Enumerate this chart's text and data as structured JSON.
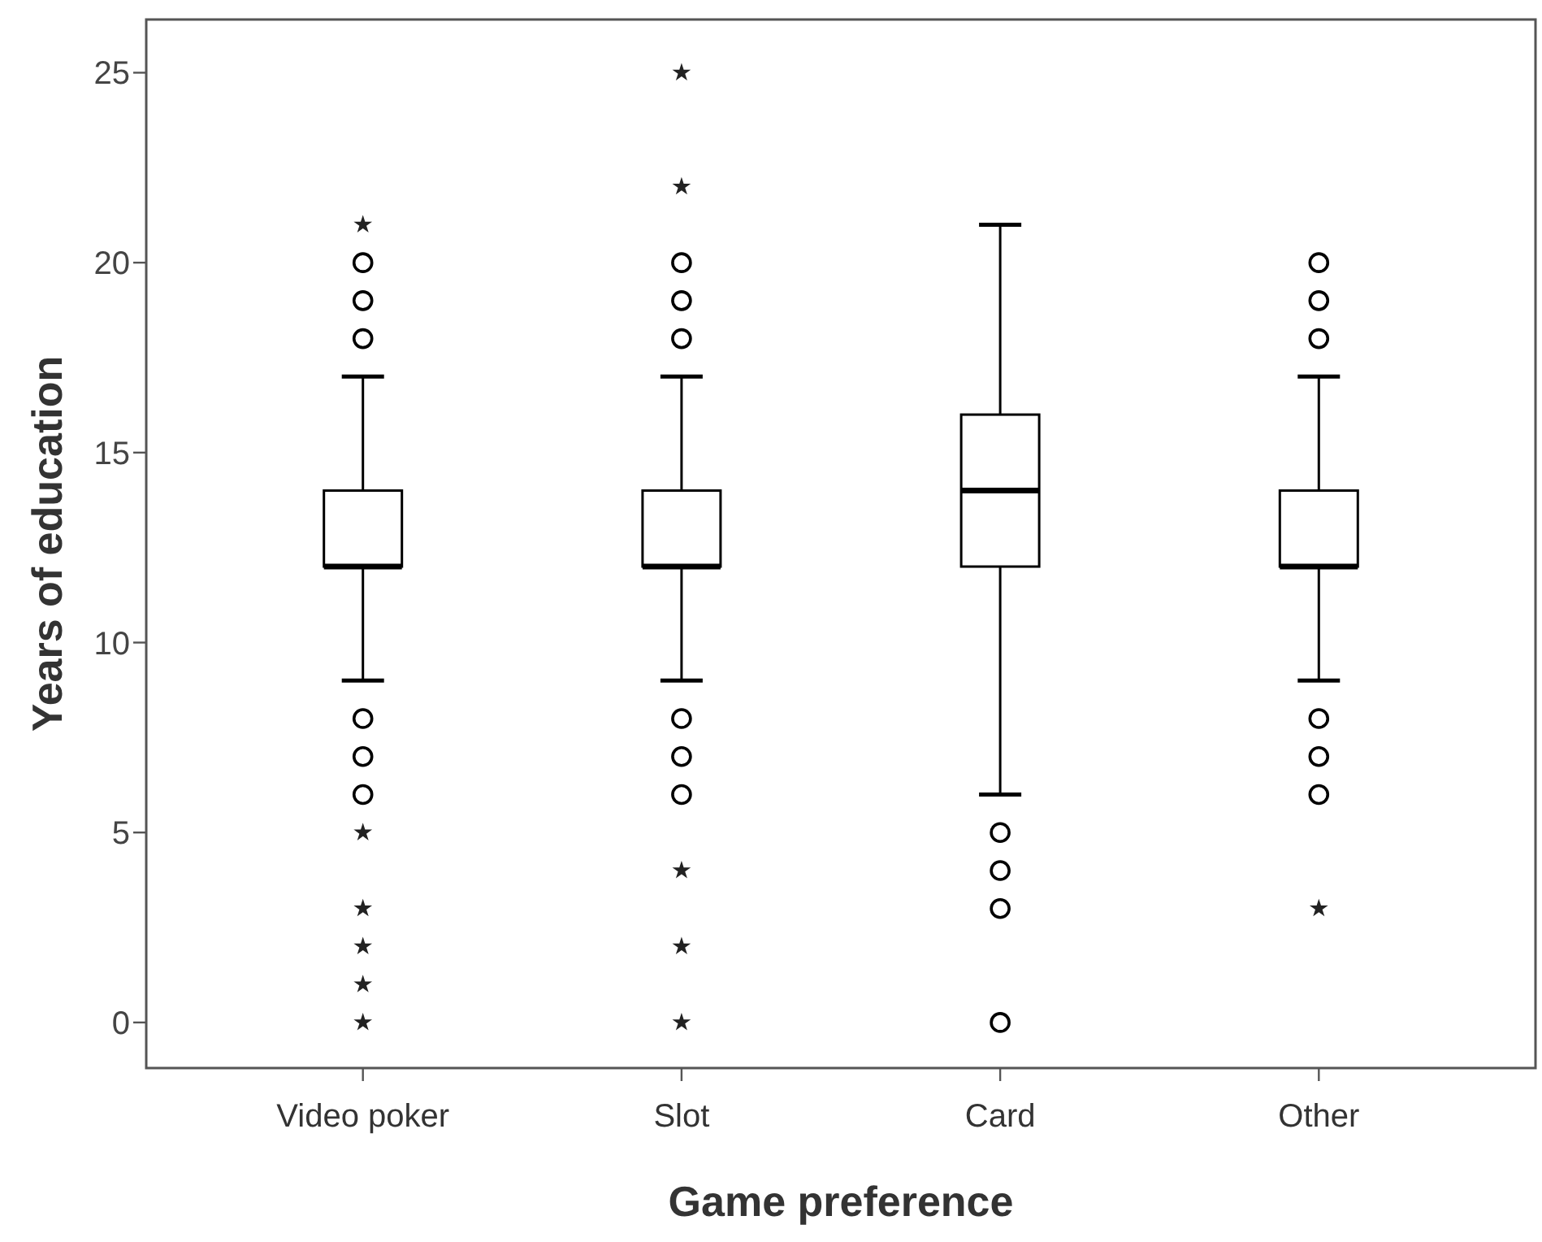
{
  "chart_data": {
    "type": "box",
    "xlabel": "Game preference",
    "ylabel": "Years of education",
    "categories": [
      "Video poker",
      "Slot",
      "Card",
      "Other"
    ],
    "ylim": [
      -1.2,
      26.4
    ],
    "yticks": [
      0,
      5,
      10,
      15,
      20,
      25
    ],
    "series": [
      {
        "color": "#000000",
        "boxes": [
          {
            "low": 9,
            "q1": 12,
            "median": 12,
            "q3": 14,
            "high": 17,
            "outliers": [
              18,
              19,
              20,
              6,
              7,
              8
            ]
          },
          {
            "low": 9,
            "q1": 12,
            "median": 12,
            "q3": 14,
            "high": 17,
            "outliers": [
              18,
              19,
              20,
              6,
              7,
              8
            ]
          },
          {
            "low": 6,
            "q1": 12,
            "median": 14,
            "q3": 16,
            "high": 21,
            "outliers": [
              0,
              3,
              4,
              5
            ]
          },
          {
            "low": 9,
            "q1": 12,
            "median": 12,
            "q3": 14,
            "high": 17,
            "outliers": [
              18,
              19,
              20,
              6,
              7,
              8
            ]
          }
        ]
      },
      {
        "type": "scatter",
        "marker": "star",
        "color": "#222222",
        "x": [
          "Video poker",
          "Video poker",
          "Video poker",
          "Video poker",
          "Video poker",
          "Video poker",
          "Slot",
          "Slot",
          "Slot",
          "Slot",
          "Slot",
          "Other"
        ],
        "values": [
          21,
          5,
          3,
          2,
          1,
          0,
          25,
          22,
          4,
          2,
          0,
          3
        ]
      }
    ]
  }
}
